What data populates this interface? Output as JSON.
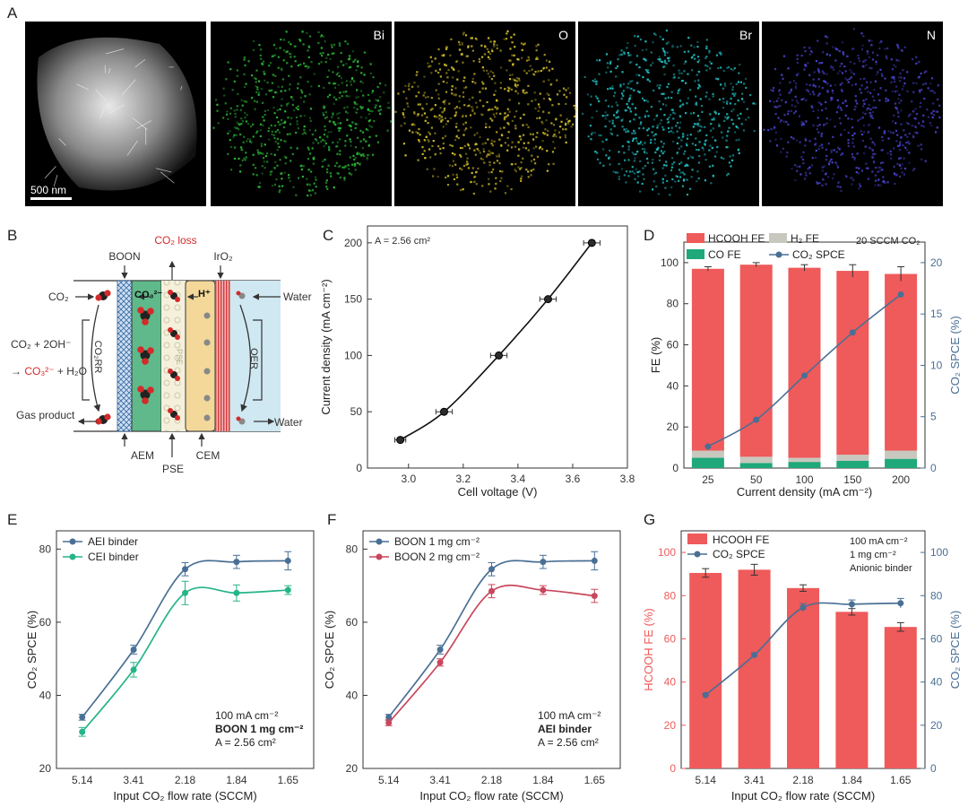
{
  "figure": {
    "panel_labels": [
      "A",
      "B",
      "C",
      "D",
      "E",
      "F",
      "G"
    ],
    "panelA": {
      "maps": [
        {
          "label": "",
          "color": "#cfcfcf"
        },
        {
          "label": "Bi",
          "color": "#2fbf3a"
        },
        {
          "label": "O",
          "color": "#d8c42a"
        },
        {
          "label": "Br",
          "color": "#22c6c9"
        },
        {
          "label": "N",
          "color": "#4a46d6"
        }
      ],
      "scale_bar": "500 nm"
    },
    "panelB": {
      "labels": {
        "boon": "BOON",
        "co2_loss": "CO₂ loss",
        "iro2": "IrO₂",
        "co2_in": "CO₂",
        "co3": "CO₃²⁻",
        "h_plus": "H⁺",
        "water_in": "Water",
        "reaction_1": "CO₂ + 2OH⁻",
        "reaction_2a": "→ ",
        "reaction_2b": "CO₃²⁻",
        "reaction_2c": " + H₂O",
        "co2rr": "CO₂RR",
        "oer": "OER",
        "gas_product": "Gas product",
        "water_out": "Water",
        "aem": "AEM",
        "pse": "PSE",
        "cem": "CEM",
        "pse_vertical": "PSE"
      }
    }
  },
  "chart_data": [
    {
      "panel": "C",
      "type": "line",
      "title": "",
      "annotation": "A = 2.56 cm²",
      "xlabel": "Cell voltage (V)",
      "ylabel": "Current density (mA cm⁻²)",
      "xlim": [
        2.85,
        3.8
      ],
      "ylim": [
        0,
        215
      ],
      "xticks": [
        3.0,
        3.2,
        3.4,
        3.6,
        3.8
      ],
      "yticks": [
        0,
        50,
        100,
        150,
        200
      ],
      "x": [
        2.97,
        3.13,
        3.33,
        3.51,
        3.67
      ],
      "y": [
        25,
        50,
        100,
        150,
        200
      ],
      "x_err": [
        0.02,
        0.03,
        0.03,
        0.03,
        0.03
      ]
    },
    {
      "panel": "D",
      "type": "bar",
      "title": "20 SCCM CO₂",
      "xlabel": "Current density (mA cm⁻²)",
      "ylabel": "FE (%)",
      "y2label": "CO₂ SPCE (%)",
      "categories": [
        "25",
        "50",
        "100",
        "150",
        "200"
      ],
      "ylim": [
        0,
        110
      ],
      "y2lim": [
        0,
        22
      ],
      "yticks": [
        0,
        20,
        40,
        60,
        80,
        100
      ],
      "y2ticks": [
        0,
        5,
        10,
        15,
        20
      ],
      "legend": [
        "HCOOH FE",
        "H₂ FE",
        "CO FE",
        "CO₂ SPCE"
      ],
      "series": [
        {
          "name": "HCOOH FE",
          "values": [
            88.5,
            93.5,
            92.5,
            89.5,
            86.0
          ],
          "color": "#ef5a5a"
        },
        {
          "name": "H₂ FE",
          "values": [
            3.5,
            3.0,
            2.0,
            3.0,
            4.0
          ],
          "color": "#c8c8be"
        },
        {
          "name": "CO FE",
          "values": [
            5.0,
            2.5,
            3.0,
            3.5,
            4.5
          ],
          "color": "#1fa87a"
        },
        {
          "name": "CO₂ SPCE",
          "values": [
            2.1,
            4.7,
            9.0,
            13.2,
            16.9
          ],
          "color": "#4a6f95",
          "axis": "right"
        }
      ],
      "total_fe": [
        97.0,
        99.0,
        97.5,
        96.0,
        94.5
      ],
      "total_fe_err": [
        1.0,
        1.0,
        1.5,
        3.0,
        3.5
      ]
    },
    {
      "panel": "E",
      "type": "line",
      "xlabel": "Input CO₂ flow rate (SCCM)",
      "ylabel": "CO₂ SPCE (%)",
      "categories": [
        "5.14",
        "3.41",
        "2.18",
        "1.84",
        "1.65"
      ],
      "ylim": [
        20,
        85
      ],
      "yticks": [
        20,
        40,
        60,
        80
      ],
      "annotation": [
        "100 mA cm⁻²",
        "BOON 1 mg cm⁻²",
        "A = 2.56 cm²"
      ],
      "series": [
        {
          "name": "AEI binder",
          "values": [
            34.0,
            52.5,
            74.5,
            76.5,
            76.8
          ],
          "err": [
            0.8,
            1.2,
            1.8,
            1.8,
            2.5
          ],
          "color": "#4a6f95"
        },
        {
          "name": "CEI binder",
          "values": [
            30.0,
            47.0,
            68.0,
            68.0,
            68.8
          ],
          "err": [
            1.2,
            2.0,
            3.2,
            2.2,
            1.2
          ],
          "color": "#26b489"
        }
      ]
    },
    {
      "panel": "F",
      "type": "line",
      "xlabel": "Input CO₂ flow rate (SCCM)",
      "ylabel": "CO₂ SPCE (%)",
      "categories": [
        "5.14",
        "3.41",
        "2.18",
        "1.84",
        "1.65"
      ],
      "ylim": [
        20,
        85
      ],
      "yticks": [
        20,
        40,
        60,
        80
      ],
      "annotation": [
        "100 mA cm⁻²",
        "AEI binder",
        "A = 2.56 cm²"
      ],
      "series": [
        {
          "name": "BOON 1 mg cm⁻²",
          "values": [
            34.0,
            52.5,
            74.5,
            76.5,
            76.8
          ],
          "err": [
            0.8,
            1.2,
            1.8,
            1.8,
            2.5
          ],
          "color": "#4a6f95"
        },
        {
          "name": "BOON 2 mg cm⁻²",
          "values": [
            32.5,
            49.0,
            68.5,
            68.8,
            67.2
          ],
          "err": [
            0.8,
            1.0,
            1.8,
            1.2,
            1.8
          ],
          "color": "#c8475d"
        }
      ]
    },
    {
      "panel": "G",
      "type": "bar",
      "xlabel": "Input CO₂ flow rate (SCCM)",
      "ylabel": "HCOOH FE (%)",
      "y2label": "CO₂ SPCE (%)",
      "categories": [
        "5.14",
        "3.41",
        "2.18",
        "1.84",
        "1.65"
      ],
      "ylim": [
        0,
        110
      ],
      "y2lim": [
        0,
        110
      ],
      "yticks": [
        0,
        20,
        40,
        60,
        80,
        100
      ],
      "y2ticks": [
        0,
        20,
        40,
        60,
        80,
        100
      ],
      "annotation": [
        "100 mA cm⁻²",
        "1 mg cm⁻²",
        "Anionic binder"
      ],
      "series": [
        {
          "name": "HCOOH FE",
          "values": [
            90.5,
            92.0,
            83.5,
            72.5,
            65.5
          ],
          "err": [
            2.0,
            2.5,
            1.5,
            1.5,
            2.0
          ],
          "color": "#ef5a5a"
        },
        {
          "name": "CO₂ SPCE",
          "values": [
            34.0,
            52.5,
            74.5,
            76.0,
            76.5
          ],
          "err": [
            0.8,
            1.0,
            1.8,
            2.0,
            2.2
          ],
          "color": "#4a6f95",
          "axis": "right"
        }
      ]
    }
  ]
}
